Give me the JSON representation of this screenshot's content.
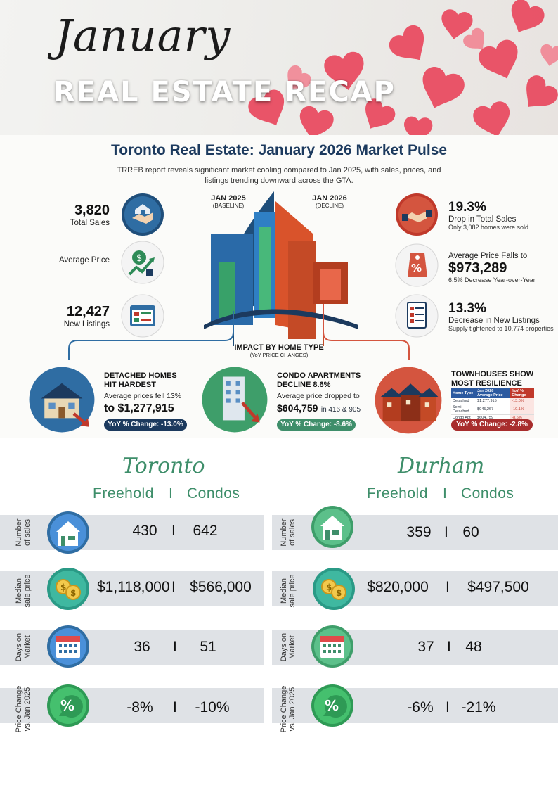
{
  "header": {
    "month": "January",
    "subtitle": "REAL ESTATE RECAP"
  },
  "infographic": {
    "title": "Toronto Real Estate: January 2026 Market Pulse",
    "description": "TRREB report reveals significant market cooling compared to Jan 2025, with sales, prices, and listings trending downward across the GTA.",
    "baseline": {
      "year": "JAN 2025",
      "note": "(BASELINE)"
    },
    "decline": {
      "year": "JAN 2026",
      "note": "(DECLINE)"
    },
    "left_stats": [
      {
        "value": "3,820",
        "label": "Total Sales"
      },
      {
        "value": "",
        "label": "Average Price"
      },
      {
        "value": "12,427",
        "label": "New Listings"
      }
    ],
    "right_stats": {
      "sales": {
        "value": "19.3%",
        "label": "Drop in Total Sales",
        "note": "Only 3,082 homes were sold"
      },
      "price": {
        "label": "Average Price Falls to",
        "value": "$973,289",
        "note": "6.5% Decrease Year-over-Year"
      },
      "listings": {
        "value": "13.3%",
        "label": "Decrease in New Listings",
        "note": "Supply tightened to 10,774 properties"
      }
    },
    "impact": {
      "title": "IMPACT BY HOME TYPE",
      "note": "(YoY PRICE CHANGES)"
    },
    "types": {
      "detached": {
        "title_1": "DETACHED HOMES",
        "title_2": "HIT HARDEST",
        "text": "Average prices fell 13%",
        "price": "to $1,277,915",
        "pill": "YoY % Change: -13.0%"
      },
      "condo": {
        "title_1": "CONDO APARTMENTS",
        "title_2": "DECLINE 8.6%",
        "text": "Average price dropped to",
        "price": "$604,759",
        "price_note": "in 416 & 905",
        "pill": "YoY % Change: -8.6%"
      },
      "town": {
        "title_1": "TOWNHOUSES SHOW",
        "title_2": "MOST RESILIENCE",
        "pill": "YoY % Change: -2.8%"
      }
    },
    "mini_table": {
      "headers": [
        "Home Type",
        "Jan 2026 Average Price",
        "YoY % Change"
      ],
      "rows": [
        [
          "Detached",
          "$1,277,915",
          "-13.0%"
        ],
        [
          "Semi-Detached",
          "$945,267",
          "-10.1%"
        ],
        [
          "Condo Apt",
          "$604,759",
          "-8.6%"
        ]
      ]
    },
    "colors": {
      "navy": "#1c3a5e",
      "green": "#3e8e6a",
      "red": "#c0392b",
      "blue": "#2c5aa0"
    }
  },
  "tables": {
    "separator": "I",
    "toronto": {
      "name": "Toronto",
      "freehold_label": "Freehold",
      "condo_label": "Condos",
      "rows": [
        {
          "label_1": "Number",
          "label_2": "of sales",
          "freehold": "430",
          "condo": "642"
        },
        {
          "label_1": "Median",
          "label_2": "sale price",
          "freehold": "$1,118,000",
          "condo": "$566,000"
        },
        {
          "label_1": "Days on",
          "label_2": "Market",
          "freehold": "36",
          "condo": "51"
        },
        {
          "label_1": "Price Change",
          "label_2": "vs. Jan 2025",
          "freehold": "-8%",
          "condo": "-10%"
        }
      ]
    },
    "durham": {
      "name": "Durham",
      "freehold_label": "Freehold",
      "condo_label": "Condos",
      "rows": [
        {
          "label_1": "Number",
          "label_2": "of sales",
          "freehold": "359",
          "condo": "60"
        },
        {
          "label_1": "Median",
          "label_2": "sale price",
          "freehold": "$820,000",
          "condo": "$497,500"
        },
        {
          "label_1": "Days on",
          "label_2": "Market",
          "freehold": "37",
          "condo": "48"
        },
        {
          "label_1": "Price Change",
          "label_2": "vs. Jan 2025",
          "freehold": "-6%",
          "condo": "-21%"
        }
      ]
    }
  }
}
